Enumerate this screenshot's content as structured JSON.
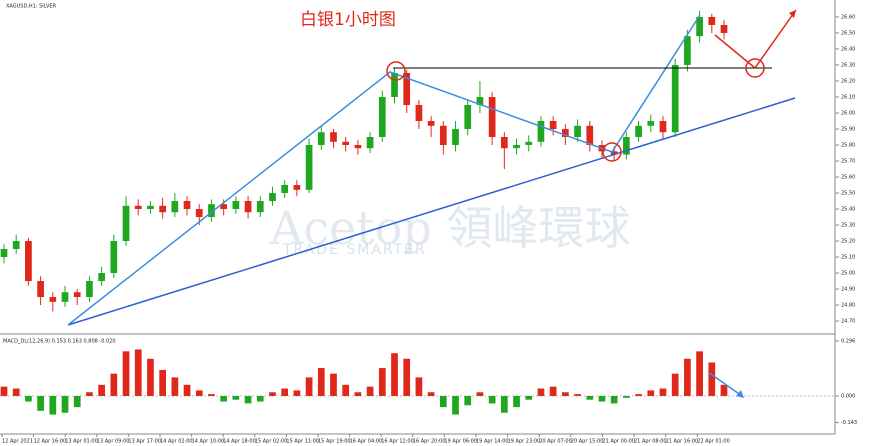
{
  "chart_data": {
    "type": "candlestick",
    "title": "白银1小时图",
    "symbol_label": "XAGUSD,H1: SILVER",
    "indicator_label": "MACD_DL(12,26,9) 0.153 0.163 0.808 -0.020",
    "watermark": "Acetop 領峰環球",
    "watermark_sub": "TRADE SMARTER",
    "up_color": "#1fa81f",
    "down_color": "#e0281a",
    "x_labels": [
      "12 Apr 2021",
      "12 Apr 16:00",
      "13 Apr 01:00",
      "13 Apr 09:00",
      "13 Apr 17:00",
      "14 Apr 02:00",
      "14 Apr 10:00",
      "14 Apr 18:00",
      "15 Apr 02:00",
      "15 Apr 11:00",
      "15 Apr 19:00",
      "16 Apr 04:00",
      "16 Apr 12:00",
      "16 Apr 20:00",
      "19 Apr 06:00",
      "19 Apr 14:00",
      "19 Apr 23:00",
      "20 Apr 07:00",
      "20 Apr 15:00",
      "21 Apr 00:00",
      "21 Apr 08:00",
      "21 Apr 16:00",
      "22 Apr 01:00"
    ],
    "open": [
      25.1,
      25.15,
      25.2,
      24.95,
      24.85,
      24.82,
      24.88,
      24.85,
      24.95,
      25.0,
      25.2,
      25.42,
      25.4,
      25.42,
      25.38,
      25.45,
      25.4,
      25.35,
      25.43,
      25.4,
      25.45,
      25.38,
      25.45,
      25.5,
      25.55,
      25.52,
      25.8,
      25.88,
      25.82,
      25.8,
      25.78,
      25.85,
      26.1,
      26.25,
      26.05,
      25.95,
      25.92,
      25.8,
      25.9,
      26.05,
      26.1,
      25.85,
      25.78,
      25.8,
      25.82,
      25.95,
      25.9,
      25.85,
      25.92,
      25.8,
      25.76,
      25.74,
      25.85,
      25.92,
      25.95,
      25.88,
      26.3,
      26.48,
      26.6,
      26.55
    ],
    "high": [
      25.18,
      25.24,
      25.22,
      24.98,
      24.88,
      24.92,
      24.9,
      24.98,
      25.04,
      25.24,
      25.48,
      25.46,
      25.45,
      25.47,
      25.5,
      25.48,
      25.43,
      25.46,
      25.46,
      25.48,
      25.48,
      25.48,
      25.54,
      25.58,
      25.58,
      25.84,
      25.92,
      25.9,
      25.85,
      25.83,
      25.88,
      26.14,
      26.28,
      26.27,
      26.08,
      25.98,
      25.95,
      25.95,
      26.08,
      26.2,
      26.13,
      25.88,
      25.84,
      25.86,
      25.98,
      25.98,
      25.93,
      25.96,
      25.95,
      25.83,
      25.79,
      25.88,
      25.95,
      25.99,
      25.98,
      26.34,
      26.52,
      26.64,
      26.62,
      26.58
    ],
    "low": [
      25.06,
      25.12,
      24.92,
      24.8,
      24.76,
      24.79,
      24.8,
      24.82,
      24.92,
      24.97,
      25.17,
      25.36,
      25.37,
      25.34,
      25.35,
      25.36,
      25.3,
      25.32,
      25.36,
      25.37,
      25.34,
      25.35,
      25.42,
      25.47,
      25.48,
      25.5,
      25.77,
      25.78,
      25.76,
      25.74,
      25.75,
      25.82,
      26.06,
      26.0,
      25.9,
      25.85,
      25.74,
      25.76,
      25.86,
      26.0,
      25.8,
      25.65,
      25.74,
      25.76,
      25.79,
      25.86,
      25.8,
      25.82,
      25.76,
      25.72,
      25.7,
      25.71,
      25.82,
      25.88,
      25.84,
      25.85,
      26.26,
      26.44,
      26.5,
      26.46
    ],
    "close": [
      25.15,
      25.2,
      24.95,
      24.85,
      24.82,
      24.88,
      24.85,
      24.95,
      25.0,
      25.2,
      25.42,
      25.4,
      25.42,
      25.38,
      25.45,
      25.4,
      25.35,
      25.43,
      25.4,
      25.45,
      25.38,
      25.45,
      25.5,
      25.55,
      25.52,
      25.8,
      25.88,
      25.82,
      25.8,
      25.78,
      25.85,
      26.1,
      26.25,
      26.05,
      25.95,
      25.92,
      25.8,
      25.9,
      26.05,
      26.1,
      25.85,
      25.78,
      25.8,
      25.82,
      25.95,
      25.9,
      25.85,
      25.92,
      25.8,
      25.76,
      25.74,
      25.85,
      25.92,
      25.95,
      25.88,
      26.3,
      26.48,
      26.6,
      26.55,
      26.5
    ],
    "ylim": [
      24.644,
      26.706
    ],
    "yticks": [
      {
        "value": 26.6,
        "label": "26.60"
      },
      {
        "value": 26.5,
        "label": "26.50"
      },
      {
        "value": 26.4,
        "label": "26.40"
      },
      {
        "value": 26.3,
        "label": "26.30"
      },
      {
        "value": 26.2,
        "label": "26.20"
      },
      {
        "value": 26.1,
        "label": "26.10"
      },
      {
        "value": 26.0,
        "label": "26.00"
      },
      {
        "value": 25.9,
        "label": "25.90"
      },
      {
        "value": 25.8,
        "label": "25.80"
      },
      {
        "value": 25.7,
        "label": "25.70"
      },
      {
        "value": 25.6,
        "label": "25.60"
      },
      {
        "value": 25.5,
        "label": "25.50"
      },
      {
        "value": 25.4,
        "label": "25.40"
      },
      {
        "value": 25.3,
        "label": "25.30"
      },
      {
        "value": 25.2,
        "label": "25.20"
      },
      {
        "value": 25.1,
        "label": "25.10"
      },
      {
        "value": 25.0,
        "label": "25.00"
      },
      {
        "value": 24.9,
        "label": "24.90"
      },
      {
        "value": 24.8,
        "label": "24.80"
      },
      {
        "value": 24.7,
        "label": "24.70"
      }
    ],
    "macd_histogram": [
      0.05,
      0.04,
      -0.03,
      -0.08,
      -0.1,
      -0.09,
      -0.06,
      0.02,
      0.06,
      0.12,
      0.24,
      0.25,
      0.2,
      0.14,
      0.1,
      0.06,
      0.03,
      0.01,
      -0.03,
      -0.02,
      -0.04,
      -0.03,
      0.02,
      0.04,
      0.03,
      0.1,
      0.15,
      0.12,
      0.06,
      0.02,
      0.05,
      0.15,
      0.23,
      0.2,
      0.1,
      0.02,
      -0.06,
      -0.1,
      -0.05,
      0.02,
      -0.04,
      -0.09,
      -0.06,
      -0.02,
      0.04,
      0.05,
      0.02,
      0.01,
      -0.02,
      -0.03,
      -0.04,
      -0.01,
      0.01,
      0.03,
      0.04,
      0.12,
      0.2,
      0.24,
      0.18,
      0.06
    ],
    "y2lim": [
      -0.199,
      0.317
    ],
    "y2ticks": [
      0.296,
      {
        "value": 0,
        "label": "0.000"
      },
      -0.143
    ]
  }
}
